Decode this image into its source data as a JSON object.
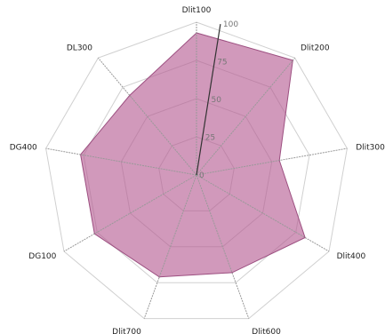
{
  "chart_data": {
    "type": "radar",
    "title": "",
    "categories": [
      "Dlit100",
      "Dlit200",
      "Dlit300",
      "Dlit400",
      "Dlit600",
      "Dlit700",
      "DG100",
      "DG400",
      "DL300"
    ],
    "axis_labels": [
      "Dlit100",
      "Dlit200",
      "Dlit300",
      "Dlit400",
      "Dlit600",
      "Dlit700",
      "DG100",
      "DG400",
      "DL300"
    ],
    "series": [
      {
        "values": [
          93,
          98,
          55,
          82,
          68,
          71,
          77,
          77,
          68
        ]
      }
    ],
    "r_range": [
      0,
      100
    ],
    "r_ticks": [
      0,
      25,
      50,
      75,
      100
    ],
    "r_tick_labels": [
      "0",
      "25",
      "50",
      "75",
      "100"
    ],
    "grid": true,
    "grid_shape": "polygon",
    "legend": false,
    "colors": {
      "fill": "#b55a92",
      "stroke": "#9c4f80",
      "grid": "#d0d0d0",
      "spoke": "#999999"
    }
  }
}
